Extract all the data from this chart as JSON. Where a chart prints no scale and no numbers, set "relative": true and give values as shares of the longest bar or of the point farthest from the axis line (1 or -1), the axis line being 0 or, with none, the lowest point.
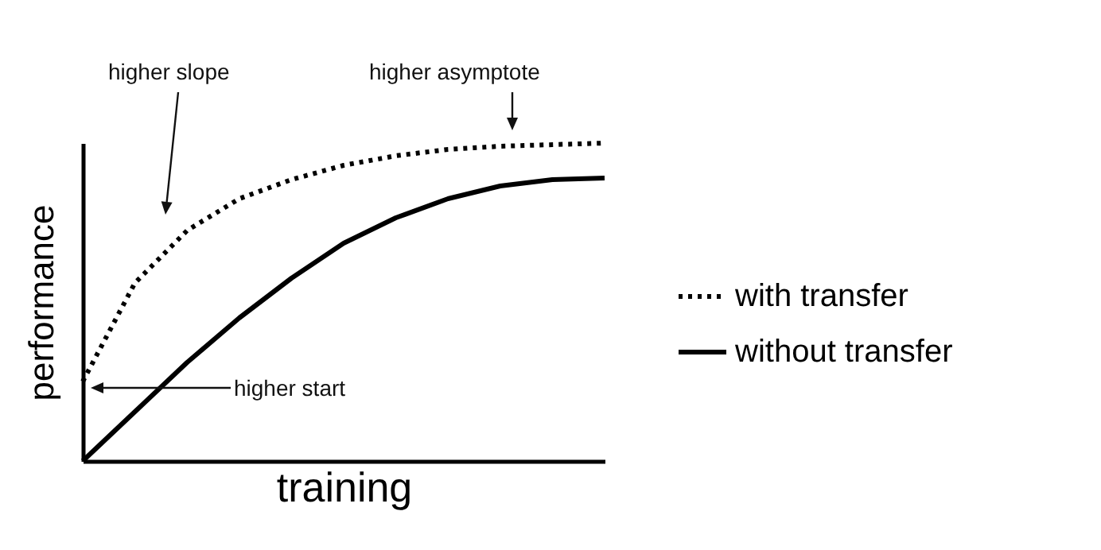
{
  "chart_data": {
    "type": "line",
    "relative": true,
    "xlabel": "training",
    "ylabel": "performance",
    "categories": [
      null,
      null,
      null,
      null,
      null,
      null,
      null,
      null,
      null,
      null,
      null
    ],
    "series": [
      {
        "name": "with transfer",
        "color": "#000000",
        "line_style": "dotted",
        "values": [
          0.25,
          0.56,
          0.725,
          0.825,
          0.885,
          0.93,
          0.96,
          0.98,
          0.99,
          0.995,
          1
        ]
      },
      {
        "name": "without transfer",
        "color": "#000000",
        "line_style": "solid",
        "values": [
          0,
          0.155,
          0.31,
          0.45,
          0.575,
          0.685,
          0.765,
          0.825,
          0.865,
          0.885,
          0.89
        ]
      }
    ],
    "annotations": [
      "higher slope",
      "higher asymptote",
      "higher start"
    ],
    "legend": "right",
    "tick_labels": false,
    "grid": false,
    "marker": "none"
  }
}
